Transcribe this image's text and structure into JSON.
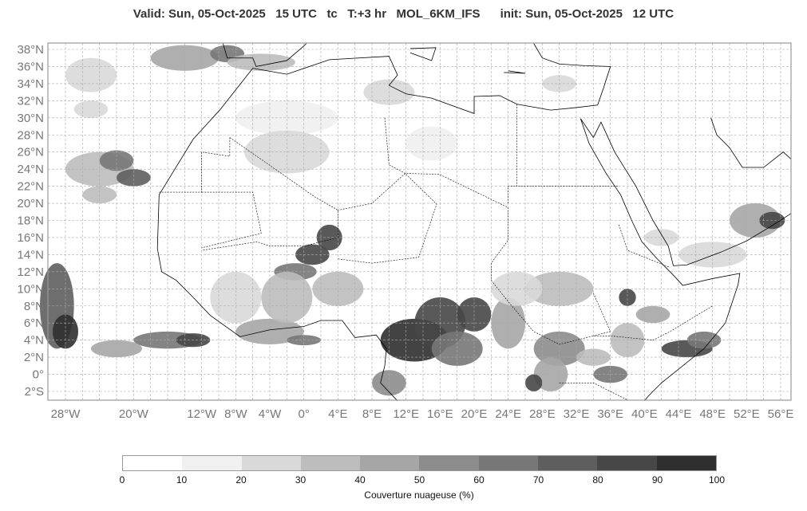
{
  "header": {
    "title": "Valid: Sun, 05-Oct-2025   15 UTC   tc   T:+3 hr   MOL_6KM_IFS      init: Sun, 05-Oct-2025   12 UTC"
  },
  "map": {
    "lon_ticks": [
      {
        "v": -28,
        "label": "28°W"
      },
      {
        "v": -20,
        "label": "20°W"
      },
      {
        "v": -12,
        "label": "12°W"
      },
      {
        "v": -8,
        "label": "8°W"
      },
      {
        "v": -4,
        "label": "4°W"
      },
      {
        "v": 0,
        "label": "0°"
      },
      {
        "v": 4,
        "label": "4°E"
      },
      {
        "v": 8,
        "label": "8°E"
      },
      {
        "v": 12,
        "label": "12°E"
      },
      {
        "v": 16,
        "label": "16°E"
      },
      {
        "v": 20,
        "label": "20°E"
      },
      {
        "v": 24,
        "label": "24°E"
      },
      {
        "v": 28,
        "label": "28°E"
      },
      {
        "v": 32,
        "label": "32°E"
      },
      {
        "v": 36,
        "label": "36°E"
      },
      {
        "v": 40,
        "label": "40°E"
      },
      {
        "v": 44,
        "label": "44°E"
      },
      {
        "v": 48,
        "label": "48°E"
      },
      {
        "v": 52,
        "label": "52°E"
      },
      {
        "v": 56,
        "label": "56°E"
      }
    ],
    "lat_ticks": [
      {
        "v": 38,
        "label": "38°N"
      },
      {
        "v": 36,
        "label": "36°N"
      },
      {
        "v": 34,
        "label": "34°N"
      },
      {
        "v": 32,
        "label": "32°N"
      },
      {
        "v": 30,
        "label": "30°N"
      },
      {
        "v": 28,
        "label": "28°N"
      },
      {
        "v": 26,
        "label": "26°N"
      },
      {
        "v": 24,
        "label": "24°N"
      },
      {
        "v": 22,
        "label": "22°N"
      },
      {
        "v": 20,
        "label": "20°N"
      },
      {
        "v": 18,
        "label": "18°N"
      },
      {
        "v": 16,
        "label": "16°N"
      },
      {
        "v": 14,
        "label": "14°N"
      },
      {
        "v": 12,
        "label": "12°N"
      },
      {
        "v": 10,
        "label": "10°N"
      },
      {
        "v": 8,
        "label": "8°N"
      },
      {
        "v": 6,
        "label": "6°N"
      },
      {
        "v": 4,
        "label": "4°N"
      },
      {
        "v": 2,
        "label": "2°N"
      },
      {
        "v": 0,
        "label": "0°"
      },
      {
        "v": -2,
        "label": "2°S"
      }
    ],
    "extent": {
      "lon": [
        -30,
        57.2
      ],
      "lat": [
        -3.1,
        38.7
      ]
    },
    "grid": true
  },
  "colorbar": {
    "title": "Couverture nuageuse (%)",
    "labels": [
      "0",
      "10",
      "20",
      "30",
      "40",
      "50",
      "60",
      "70",
      "80",
      "90",
      "100"
    ],
    "colors": [
      "#ffffff",
      "#f0f0f0",
      "#d9d9d9",
      "#bdbdbd",
      "#a6a6a6",
      "#8c8c8c",
      "#777777",
      "#5e5e5e",
      "#474747",
      "#2f2f2f"
    ]
  }
}
